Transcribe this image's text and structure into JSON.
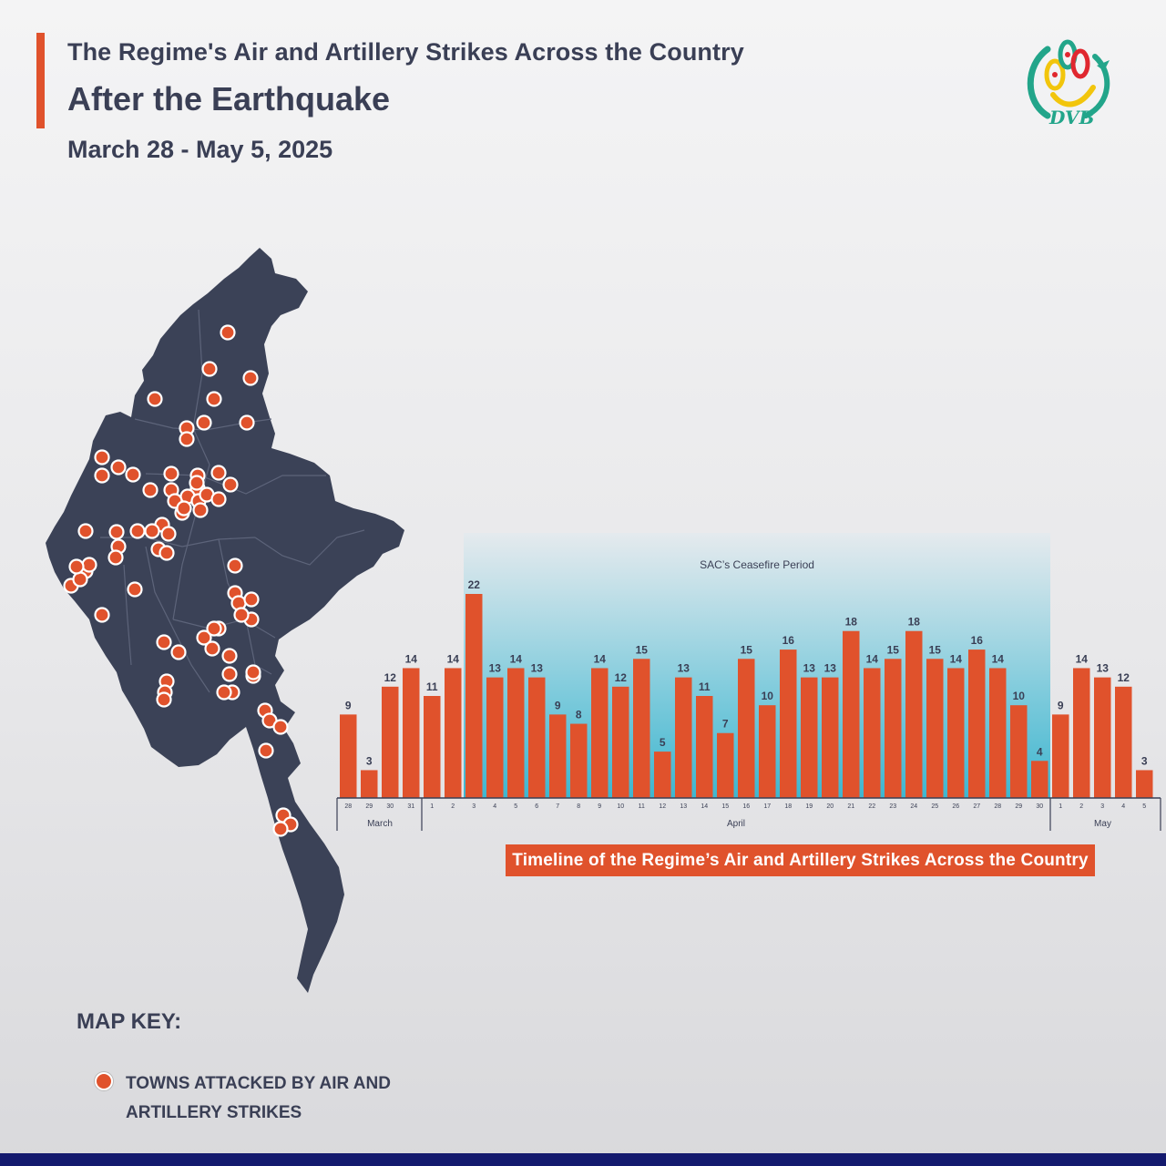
{
  "header": {
    "title_line1": "The Regime's Air and Artillery Strikes Across the Country",
    "title_line2": "After the Earthquake",
    "date_range": "March 28 - May 5, 2025"
  },
  "logo": {
    "text": "DVB",
    "icon": "dvb-peacock-logo"
  },
  "map": {
    "fill_color": "#3b4257",
    "marker_color": "#e0522c",
    "marker_count": 74
  },
  "legend": {
    "title": "MAP KEY:",
    "items": [
      {
        "icon": "strike-marker-icon",
        "label": "TOWNS ATTACKED BY AIR AND ARTILLERY STRIKES"
      }
    ]
  },
  "chart_data": {
    "type": "bar",
    "title": "Timeline of the Regime’s Air and Artillery Strikes Across the Country",
    "highlight_label": "SAC’s Ceasefire Period",
    "highlight_range": [
      "3",
      "30"
    ],
    "categories": [
      "28",
      "29",
      "30",
      "31",
      "1",
      "2",
      "3",
      "4",
      "5",
      "6",
      "7",
      "8",
      "9",
      "10",
      "11",
      "12",
      "13",
      "14",
      "15",
      "16",
      "17",
      "18",
      "19",
      "20",
      "21",
      "22",
      "23",
      "24",
      "25",
      "26",
      "27",
      "28",
      "29",
      "30",
      "1",
      "2",
      "3",
      "4",
      "5"
    ],
    "months": [
      {
        "name": "March",
        "count": 4
      },
      {
        "name": "April",
        "count": 30
      },
      {
        "name": "May",
        "count": 5
      }
    ],
    "values": [
      9,
      3,
      12,
      14,
      11,
      14,
      22,
      13,
      14,
      13,
      9,
      8,
      14,
      12,
      15,
      5,
      13,
      11,
      7,
      15,
      10,
      16,
      13,
      13,
      18,
      14,
      15,
      18,
      15,
      14,
      16,
      14,
      10,
      4,
      9,
      14,
      13,
      12,
      3
    ],
    "ylim": [
      0,
      22
    ],
    "bar_color": "#e0522c",
    "grid": false,
    "legend": "none"
  }
}
